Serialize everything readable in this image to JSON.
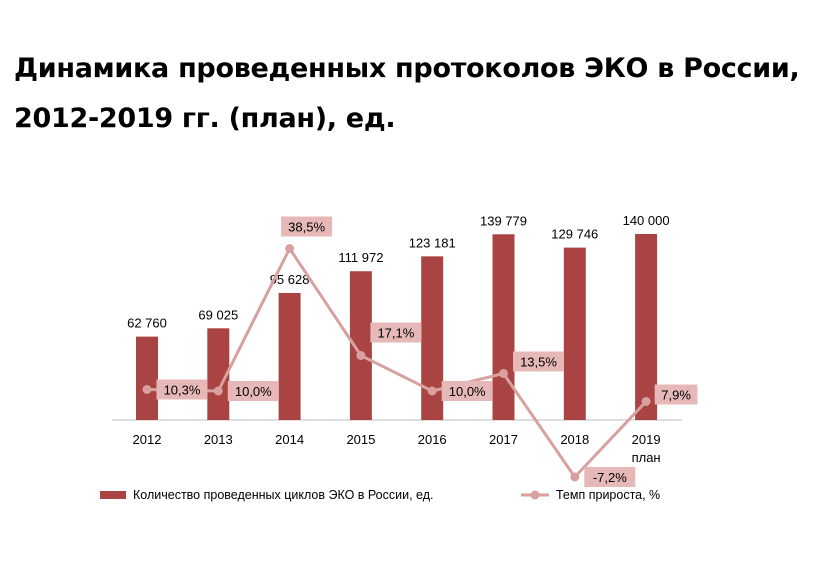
{
  "title_lines": [
    "Динамика проведенных протоколов ЭКО в России,",
    "2012-2019 гг. (план), ед."
  ],
  "colors": {
    "bar": "#A94442",
    "line": "#D9A0A0",
    "label_box": "#E6B9B8",
    "axis": "#BFBFBF",
    "text": "#000000"
  },
  "chart_data": {
    "type": "bar",
    "categories": [
      [
        "2012"
      ],
      [
        "2013"
      ],
      [
        "2014"
      ],
      [
        "2015"
      ],
      [
        "2016"
      ],
      [
        "2017"
      ],
      [
        "2018"
      ],
      [
        "2019",
        "план"
      ]
    ],
    "series": [
      {
        "name": "Количество проведенных циклов ЭКО в России, ед.",
        "type": "bar",
        "values": [
          62760,
          69025,
          95628,
          111972,
          123181,
          139779,
          129746,
          140000
        ],
        "labels": [
          "62 760",
          "69 025",
          "95 628",
          "111 972",
          "123 181",
          "139 779",
          "129 746",
          "140 000"
        ]
      },
      {
        "name": "Темп прироста, %",
        "type": "line",
        "values": [
          10.3,
          10.0,
          38.5,
          17.1,
          10.0,
          13.5,
          -7.2,
          7.9
        ],
        "labels": [
          "10,3%",
          "10,0%",
          "38,5%",
          "17,1%",
          "10,0%",
          "13,5%",
          "-7,2%",
          "7,9%"
        ]
      }
    ],
    "legend_position": "bottom",
    "grid": false
  }
}
